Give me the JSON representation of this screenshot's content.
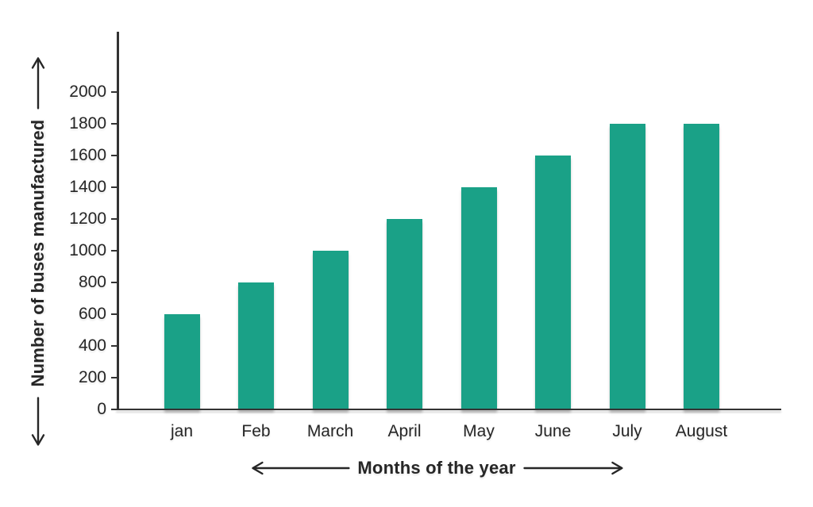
{
  "page": {
    "background": "#ffffff"
  },
  "chart_data": {
    "type": "bar",
    "title": "",
    "categories": [
      "jan",
      "Feb",
      "March",
      "April",
      "May",
      "June",
      "July",
      "August"
    ],
    "values": [
      600,
      800,
      1000,
      1200,
      1400,
      1600,
      1800,
      1800
    ],
    "xlabel": "Months of the year",
    "ylabel": "Number of buses manufactured",
    "ylim": [
      0,
      2000
    ],
    "ytick_step": 200,
    "yticks": [
      0,
      200,
      400,
      600,
      800,
      1000,
      1200,
      1400,
      1600,
      1800,
      2000
    ],
    "grid": false,
    "legend": null,
    "bar_color": "#1aa187",
    "axis_color": "#333333",
    "text_color": "#262626",
    "axis_arrows": "both ends of each axis label"
  },
  "icons": {
    "y_axis_up_arrow": "↑",
    "y_axis_down_arrow": "↓",
    "x_axis_left_arrow": "←",
    "x_axis_right_arrow": "→"
  }
}
